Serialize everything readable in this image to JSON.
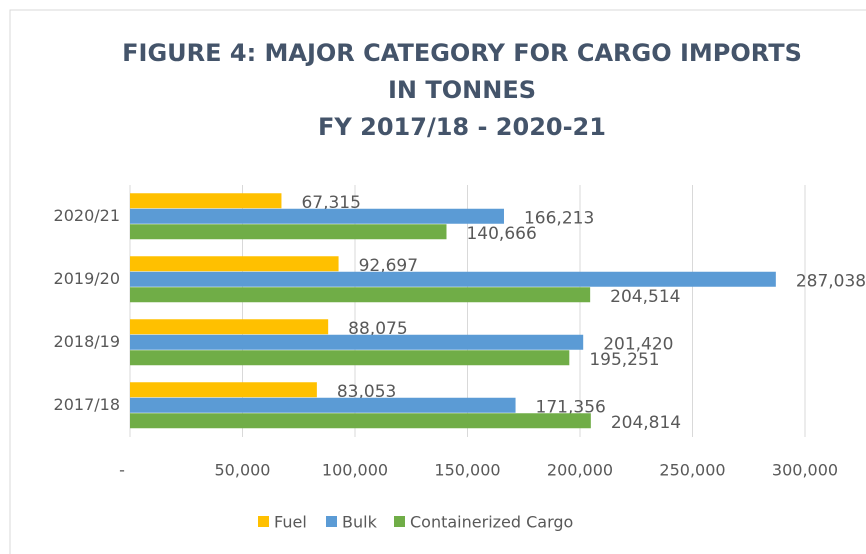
{
  "chart_data": {
    "type": "hbar",
    "title_lines": [
      "FIGURE 4: MAJOR CATEGORY FOR CARGO IMPORTS",
      "IN TONNES",
      "FY 2017/18 - 2020-21"
    ],
    "categories": [
      "2020/21",
      "2019/20",
      "2018/19",
      "2017/18"
    ],
    "series": [
      {
        "name": "Fuel",
        "color": "#ffc000",
        "values": [
          67315,
          92697,
          88075,
          83053
        ],
        "value_labels": [
          "67,315",
          "92,697",
          "88,075",
          "83,053"
        ]
      },
      {
        "name": "Bulk",
        "color": "#5b9bd5",
        "values": [
          166213,
          287038,
          201420,
          171356
        ],
        "value_labels": [
          "166,213",
          "287,038",
          "201,420",
          "171,356"
        ]
      },
      {
        "name": "Containerized Cargo",
        "color": "#70ad47",
        "values": [
          140666,
          204514,
          195251,
          204814
        ],
        "value_labels": [
          "140,666",
          "204,514",
          "195,251",
          "204,814"
        ]
      }
    ],
    "xlim": [
      0,
      300000
    ],
    "xticks": [
      {
        "value": 0,
        "label": "-"
      },
      {
        "value": 50000,
        "label": "50,000"
      },
      {
        "value": 100000,
        "label": "100,000"
      },
      {
        "value": 150000,
        "label": "150,000"
      },
      {
        "value": 200000,
        "label": "200,000"
      },
      {
        "value": 250000,
        "label": "250,000"
      },
      {
        "value": 300000,
        "label": "300,000"
      }
    ],
    "grid": true,
    "legend": "bottom"
  }
}
